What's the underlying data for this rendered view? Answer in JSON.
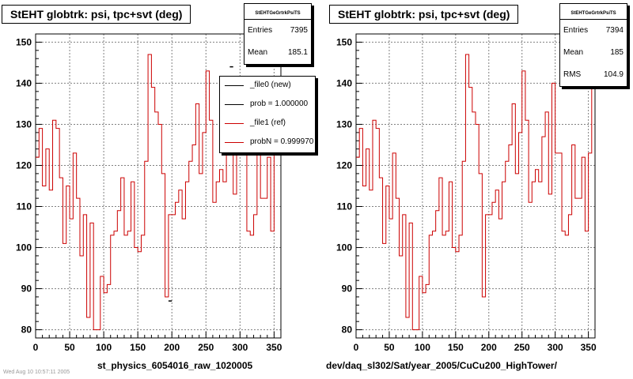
{
  "chart_data": [
    {
      "type": "line",
      "title": "StEHT globtrk: psi, tpc+svt (deg)",
      "xlabel": "st_physics_6054016_raw_1020005",
      "ylabel": "",
      "xlim": [
        0,
        360
      ],
      "ylim": [
        78,
        152
      ],
      "x_ticks": [
        "0",
        "50",
        "100",
        "150",
        "200",
        "250",
        "300",
        "350"
      ],
      "y_ticks": [
        "80",
        "90",
        "100",
        "110",
        "120",
        "130",
        "140",
        "150"
      ],
      "grid": true,
      "legend_position": "top-right",
      "stats": {
        "title": "StEHTGeGrtrkPsiTS",
        "rows": [
          {
            "label": "Entries",
            "value": "7395"
          },
          {
            "label": "Mean",
            "value": "185.1"
          }
        ]
      },
      "legend": [
        {
          "label": "_file0 (new)",
          "color": "#000000"
        },
        {
          "label": "prob = 1.000000",
          "color": "#000000"
        },
        {
          "label": "_file1 (ref)",
          "color": "#cc0000"
        },
        {
          "label": "probN = 0.999970",
          "color": "#cc0000"
        }
      ],
      "series": [
        {
          "name": "_file1 (ref)",
          "color": "#cc0000",
          "x": [
            0,
            5,
            10,
            15,
            20,
            25,
            30,
            35,
            40,
            45,
            50,
            55,
            60,
            65,
            70,
            75,
            80,
            85,
            90,
            95,
            100,
            105,
            110,
            115,
            120,
            125,
            130,
            135,
            140,
            145,
            150,
            155,
            160,
            165,
            170,
            175,
            180,
            185,
            190,
            195,
            200,
            205,
            210,
            215,
            220,
            225,
            230,
            235,
            240,
            245,
            250,
            255,
            260,
            265,
            270,
            275,
            280,
            285,
            290,
            295,
            300,
            305,
            310,
            315,
            320,
            325,
            330,
            335,
            340,
            345,
            350,
            355
          ],
          "values": [
            122,
            129,
            115,
            124,
            114,
            131,
            129,
            117,
            101,
            115,
            107,
            123,
            112,
            98,
            108,
            83,
            106,
            80,
            80,
            93,
            89,
            91,
            103,
            104,
            109,
            117,
            103,
            104,
            116,
            100,
            99,
            103,
            121,
            147,
            139,
            133,
            130,
            118,
            88,
            108,
            108,
            111,
            114,
            107,
            116,
            121,
            125,
            135,
            118,
            128,
            143,
            131,
            111,
            116,
            119,
            116,
            127,
            133,
            113,
            140,
            123,
            123,
            104,
            103,
            108,
            125,
            112,
            112,
            122,
            104,
            123,
            140
          ]
        },
        {
          "name": "_file0 (new)",
          "color": "#000000",
          "x": [
            195,
            285
          ],
          "values": [
            87,
            144
          ]
        }
      ]
    },
    {
      "type": "line",
      "title": "StEHT globtrk: psi, tpc+svt (deg)",
      "xlabel": "dev/daq_sl302/Sat/year_2005/CuCu200_HighTower/",
      "ylabel": "",
      "xlim": [
        0,
        360
      ],
      "ylim": [
        78,
        152
      ],
      "x_ticks": [
        "0",
        "50",
        "100",
        "150",
        "200",
        "250",
        "300",
        "350"
      ],
      "y_ticks": [
        "80",
        "90",
        "100",
        "110",
        "120",
        "130",
        "140",
        "150"
      ],
      "grid": true,
      "stats": {
        "title": "StEHTGeGrtrkPsiTS",
        "rows": [
          {
            "label": "Entries",
            "value": "7394"
          },
          {
            "label": "Mean",
            "value": "185"
          },
          {
            "label": "RMS",
            "value": "104.9"
          }
        ]
      },
      "series": [
        {
          "color": "#cc0000",
          "x": [
            0,
            5,
            10,
            15,
            20,
            25,
            30,
            35,
            40,
            45,
            50,
            55,
            60,
            65,
            70,
            75,
            80,
            85,
            90,
            95,
            100,
            105,
            110,
            115,
            120,
            125,
            130,
            135,
            140,
            145,
            150,
            155,
            160,
            165,
            170,
            175,
            180,
            185,
            190,
            195,
            200,
            205,
            210,
            215,
            220,
            225,
            230,
            235,
            240,
            245,
            250,
            255,
            260,
            265,
            270,
            275,
            280,
            285,
            290,
            295,
            300,
            305,
            310,
            315,
            320,
            325,
            330,
            335,
            340,
            345,
            350,
            355
          ],
          "values": [
            122,
            129,
            115,
            124,
            114,
            131,
            129,
            117,
            101,
            115,
            107,
            123,
            112,
            98,
            108,
            83,
            106,
            80,
            80,
            93,
            89,
            91,
            103,
            104,
            109,
            117,
            103,
            104,
            116,
            100,
            99,
            103,
            121,
            147,
            139,
            133,
            130,
            118,
            88,
            108,
            108,
            111,
            114,
            107,
            116,
            121,
            125,
            135,
            118,
            128,
            143,
            131,
            111,
            116,
            119,
            116,
            127,
            133,
            113,
            140,
            123,
            123,
            104,
            103,
            108,
            125,
            112,
            112,
            122,
            104,
            123,
            140
          ]
        }
      ]
    }
  ],
  "footer_text": "Wed Aug 10 10:57:11 2005"
}
